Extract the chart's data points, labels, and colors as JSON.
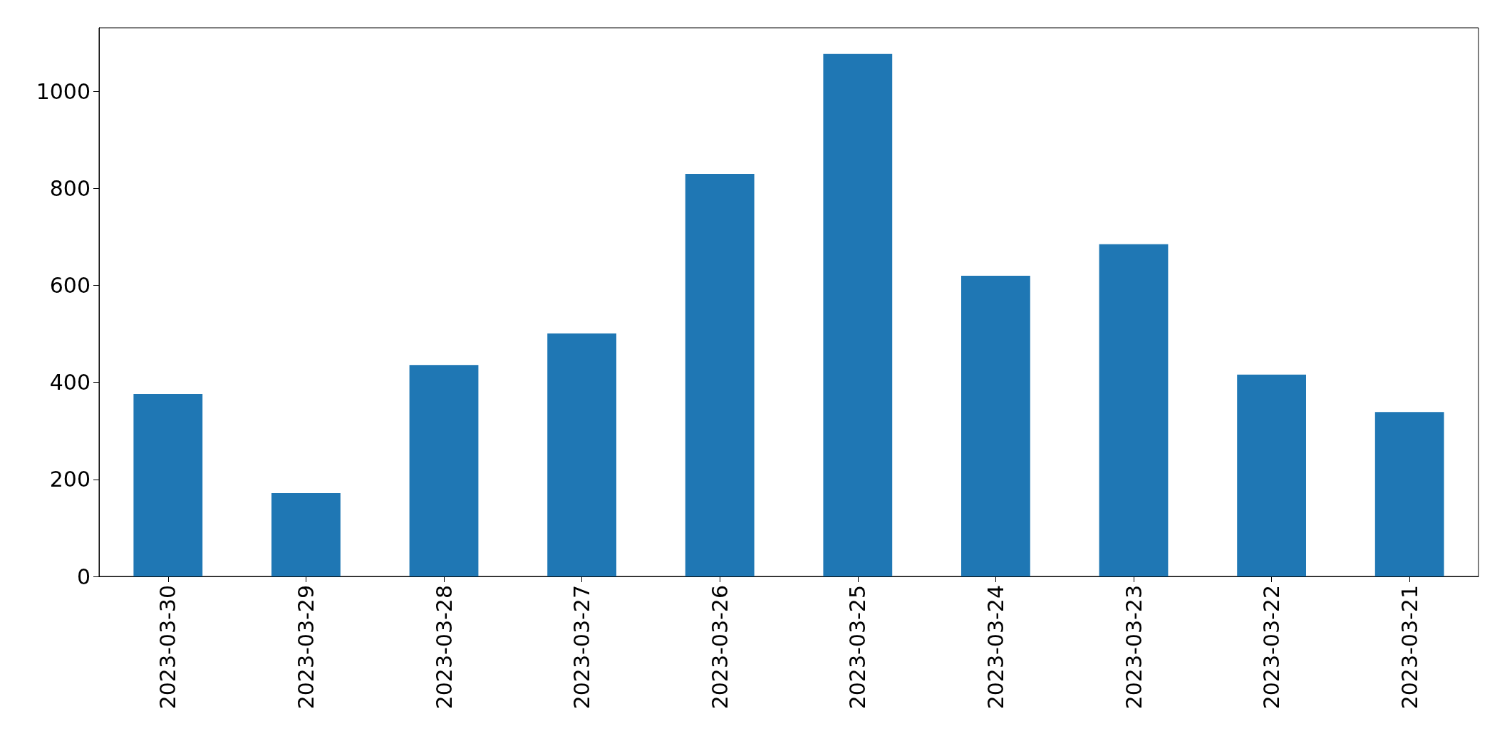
{
  "chart_data": {
    "type": "bar",
    "categories": [
      "2023-03-30",
      "2023-03-29",
      "2023-03-28",
      "2023-03-27",
      "2023-03-26",
      "2023-03-25",
      "2023-03-24",
      "2023-03-23",
      "2023-03-22",
      "2023-03-21"
    ],
    "values": [
      376,
      172,
      436,
      501,
      830,
      1077,
      620,
      685,
      416,
      339
    ],
    "color": "#1f77b4",
    "ylim": [
      0,
      1131
    ],
    "yticks": [
      0,
      200,
      400,
      600,
      800,
      1000
    ],
    "grid": false
  }
}
